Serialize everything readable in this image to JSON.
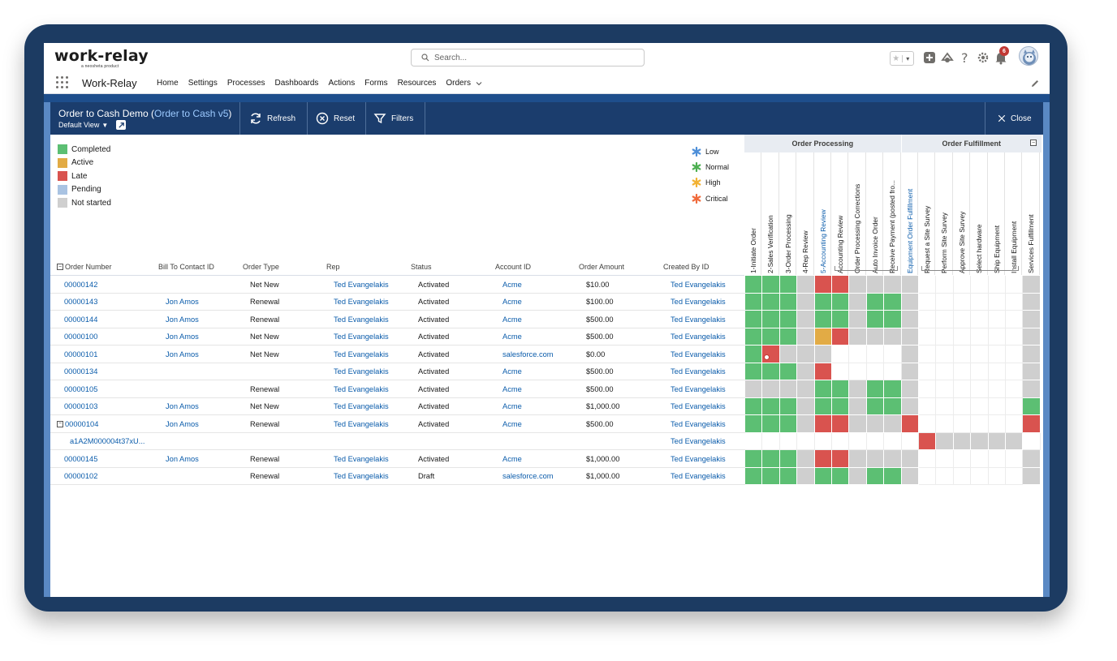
{
  "brand": {
    "logo": "work-relay",
    "tagline": "a neosheta product",
    "app_name": "Work-Relay"
  },
  "search": {
    "placeholder": "Search..."
  },
  "notifications": {
    "count": "6"
  },
  "nav": {
    "items": [
      "Home",
      "Settings",
      "Processes",
      "Dashboards",
      "Actions",
      "Forms",
      "Resources",
      "Orders"
    ]
  },
  "toolbar": {
    "title": "Order to Cash Demo (",
    "title_link": "Order to Cash v5",
    "title_end": ")",
    "view": "Default View",
    "refresh": "Refresh",
    "reset": "Reset",
    "filters": "Filters",
    "close": "Close"
  },
  "status_legend": [
    {
      "label": "Completed",
      "color": "#5cbf73"
    },
    {
      "label": "Active",
      "color": "#e2ab45"
    },
    {
      "label": "Late",
      "color": "#d9534f"
    },
    {
      "label": "Pending",
      "color": "#a9c3e2"
    },
    {
      "label": "Not started",
      "color": "#cfcfcf"
    }
  ],
  "priority_legend": [
    {
      "label": "Low",
      "color": "#4e8fd8"
    },
    {
      "label": "Normal",
      "color": "#4caf50"
    },
    {
      "label": "High",
      "color": "#f2b233"
    },
    {
      "label": "Critical",
      "color": "#f06a3b"
    }
  ],
  "columns": [
    "Order Number",
    "Bill To Contact ID",
    "Order Type",
    "Rep",
    "Status",
    "Account ID",
    "Order Amount",
    "Created By ID"
  ],
  "groups": [
    {
      "label": "Order Processing"
    },
    {
      "label": "Order Fulfillment"
    }
  ],
  "stages": [
    {
      "label": "1-Initiate Order",
      "link": false
    },
    {
      "label": "2-Sales Verification",
      "link": false
    },
    {
      "label": "3-Order Processing",
      "link": false
    },
    {
      "label": "4-Rep Review",
      "link": false
    },
    {
      "label": "5-Accounting Review",
      "link": true
    },
    {
      "label": "Accounting Review",
      "link": false
    },
    {
      "label": "Order Processing Corrections",
      "link": false
    },
    {
      "label": "Auto Invoice Order",
      "link": false
    },
    {
      "label": "Receive Payment (posted fro...",
      "link": false
    },
    {
      "label": "Equipment Order Fulfillment",
      "link": true
    },
    {
      "label": "Request a Site Survey",
      "link": false
    },
    {
      "label": "Perform Site Survey",
      "link": false
    },
    {
      "label": "Approve Site Survey",
      "link": false
    },
    {
      "label": "Select hardware",
      "link": false
    },
    {
      "label": "Ship Equipment",
      "link": false
    },
    {
      "label": "Install Equipment",
      "link": false
    },
    {
      "label": "Services Fulfillment",
      "link": false
    }
  ],
  "rows": [
    {
      "order": "00000142",
      "contact": "",
      "type": "Net New",
      "rep": "Ted Evangelakis",
      "status": "Activated",
      "account": "Acme",
      "amount": "$10.00",
      "created": "Ted Evangelakis",
      "cells": "CCCNLLNNNN______N"
    },
    {
      "order": "00000143",
      "contact": "Jon Amos",
      "type": "Renewal",
      "rep": "Ted Evangelakis",
      "status": "Activated",
      "account": "Acme",
      "amount": "$100.00",
      "created": "Ted Evangelakis",
      "cells": "CCCNCCNCCN______N"
    },
    {
      "order": "00000144",
      "contact": "Jon Amos",
      "type": "Renewal",
      "rep": "Ted Evangelakis",
      "status": "Activated",
      "account": "Acme",
      "amount": "$500.00",
      "created": "Ted Evangelakis",
      "cells": "CCCNCCNCCN______N"
    },
    {
      "order": "00000100",
      "contact": "Jon Amos",
      "type": "Net New",
      "rep": "Ted Evangelakis",
      "status": "Activated",
      "account": "Acme",
      "amount": "$500.00",
      "created": "Ted Evangelakis",
      "cells": "CCCNALNNNN______N"
    },
    {
      "order": "00000101",
      "contact": "Jon Amos",
      "type": "Net New",
      "rep": "Ted Evangelakis",
      "status": "Activated",
      "account": "salesforce.com",
      "amount": "$0.00",
      "created": "Ted Evangelakis",
      "cells": "CLNNN____N______N"
    },
    {
      "order": "00000134",
      "contact": "",
      "type": "",
      "rep": "Ted Evangelakis",
      "status": "Activated",
      "account": "Acme",
      "amount": "$500.00",
      "created": "Ted Evangelakis",
      "cells": "CCCNL____N______N"
    },
    {
      "order": "00000105",
      "contact": "",
      "type": "Renewal",
      "rep": "Ted Evangelakis",
      "status": "Activated",
      "account": "Acme",
      "amount": "$500.00",
      "created": "Ted Evangelakis",
      "cells": "NNNNCCNCCN______N"
    },
    {
      "order": "00000103",
      "contact": "Jon Amos",
      "type": "Net New",
      "rep": "Ted Evangelakis",
      "status": "Activated",
      "account": "Acme",
      "amount": "$1,000.00",
      "created": "Ted Evangelakis",
      "cells": "CCCNCCNCCN______C"
    },
    {
      "order": "00000104",
      "contact": "Jon Amos",
      "type": "Renewal",
      "rep": "Ted Evangelakis",
      "status": "Activated",
      "account": "Acme",
      "amount": "$500.00",
      "created": "Ted Evangelakis",
      "cells": "CCCNLLNNNL______L",
      "expanded": true
    },
    {
      "order": "a1A2M000004t37xU...",
      "contact": "",
      "type": "",
      "rep": "",
      "status": "",
      "account": "",
      "amount": "",
      "created": "Ted Evangelakis",
      "cells": "__________LNNNNN_",
      "child": true
    },
    {
      "order": "00000145",
      "contact": "Jon Amos",
      "type": "Renewal",
      "rep": "Ted Evangelakis",
      "status": "Activated",
      "account": "Acme",
      "amount": "$1,000.00",
      "created": "Ted Evangelakis",
      "cells": "CCCNLLNNNN______N"
    },
    {
      "order": "00000102",
      "contact": "",
      "type": "Renewal",
      "rep": "Ted Evangelakis",
      "status": "Draft",
      "account": "salesforce.com",
      "amount": "$1,000.00",
      "created": "Ted Evangelakis",
      "cells": "CCCNCCNCCN______N"
    }
  ]
}
